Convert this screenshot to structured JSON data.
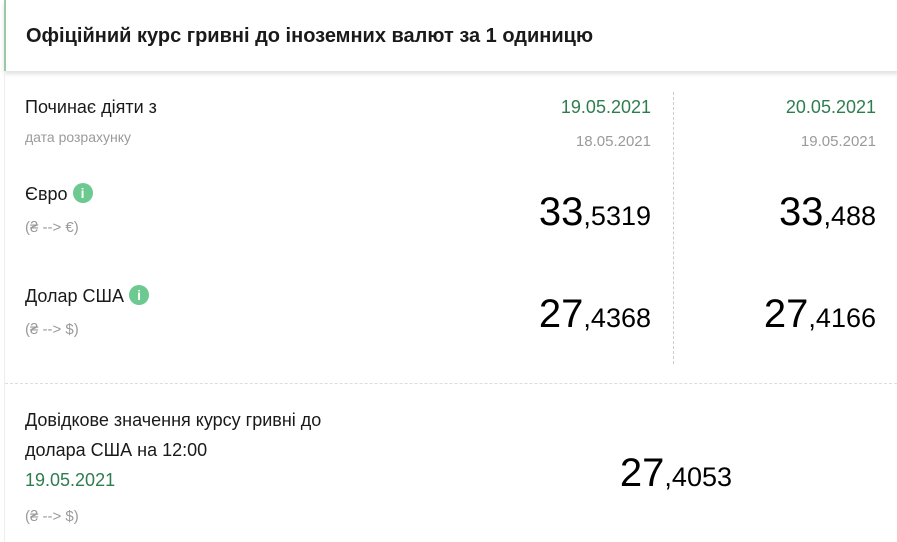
{
  "header": {
    "title": "Офіційний курс гривні до іноземних валют за 1 одиницю"
  },
  "rates": {
    "effective_label": "Починає діяти з",
    "calc_label": "дата розрахунку",
    "columns": [
      {
        "effective": "19.05.2021",
        "calc": "18.05.2021"
      },
      {
        "effective": "20.05.2021",
        "calc": "19.05.2021"
      }
    ],
    "currencies": [
      {
        "name": "Євро",
        "direction": "(₴ --> €)",
        "info": "i",
        "values": [
          {
            "int": "33",
            "frac": ",5319"
          },
          {
            "int": "33",
            "frac": ",488"
          }
        ]
      },
      {
        "name": "Долар США",
        "direction": "(₴ --> $)",
        "info": "i",
        "values": [
          {
            "int": "27",
            "frac": ",4368"
          },
          {
            "int": "27",
            "frac": ",4166"
          }
        ]
      }
    ]
  },
  "reference": {
    "line1": "Довідкове значення курсу гривні до",
    "line2": "долара США на 12:00",
    "date": "19.05.2021",
    "direction": "(₴ --> $)",
    "value": {
      "int": "27",
      "frac": ",4053"
    }
  },
  "colors": {
    "accent_green": "#2e7d4f",
    "info_icon": "#6cc990"
  }
}
